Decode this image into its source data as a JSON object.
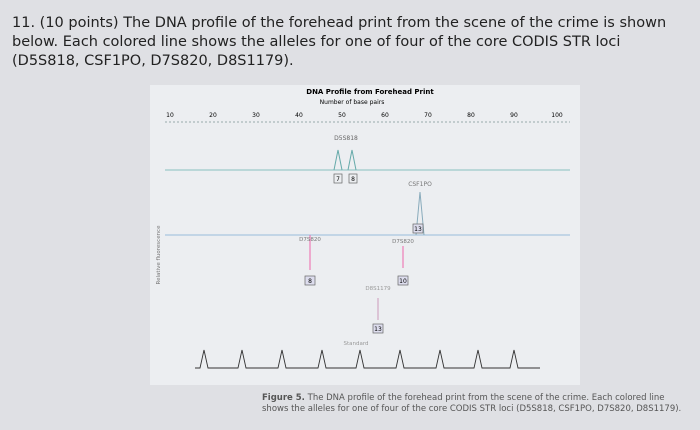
{
  "question": {
    "number": "11.",
    "points": "(10 points)",
    "text": "The DNA profile of the forehead print from the scene of the crime is shown below. Each colored line shows the alleles for one of four of the core CODIS STR loci (D5S818, CSF1PO, D7S820, D8S1179)."
  },
  "figure": {
    "title": "DNA Profile from Forehead Print",
    "x_label": "Number of base pairs",
    "y_label": "Relative fluorescence",
    "ticks": [
      "10",
      "20",
      "30",
      "40",
      "50",
      "60",
      "70",
      "80",
      "90",
      "100"
    ],
    "loci": [
      {
        "label": "D5S818",
        "alleles": [
          "7",
          "8"
        ]
      },
      {
        "label": "CSF1PO",
        "alleles": [
          "13"
        ]
      },
      {
        "label": "D7S820",
        "alleles": [
          "8"
        ]
      },
      {
        "label": "D7S820",
        "alleles": [
          "10"
        ]
      },
      {
        "label": "D8S1179",
        "alleles": [
          "13"
        ]
      },
      {
        "label": "Standard",
        "alleles": []
      }
    ]
  },
  "caption": {
    "label": "Figure 5.",
    "text": "The DNA profile of the forehead print from the scene of the crime. Each colored line shows the alleles for one of four of the core CODIS STR loci (D5S818, CSF1PO, D7S820, D8S1179)."
  }
}
